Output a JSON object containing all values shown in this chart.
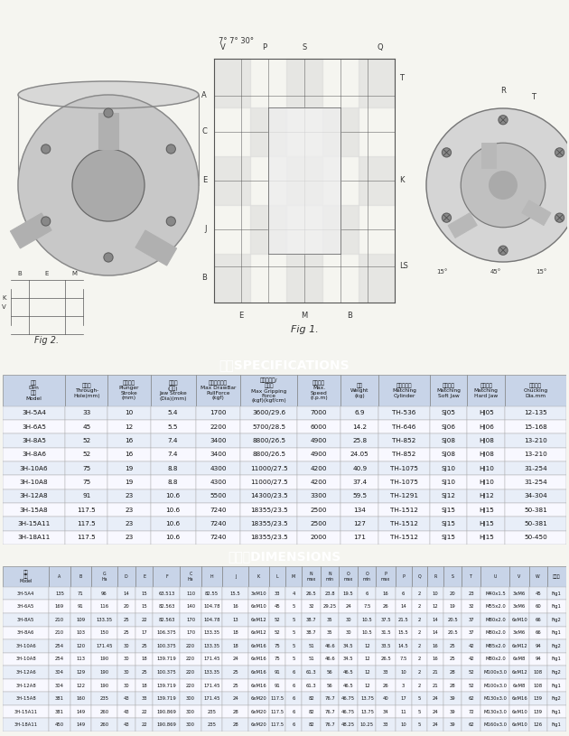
{
  "bg_color": "#f5f5f0",
  "header_blue": "#3060a0",
  "header_text_color": "#ffffff",
  "table_header_bg": "#c8d4e8",
  "row_alt_bg": "#e8eef8",
  "row_bg": "#f8f8ff",
  "border_color": "#888888",
  "title1": "规格SPECIFICATIONS",
  "title2": "尺寸表DIMENSIONS",
  "spec_data": [
    [
      "3H-5A4",
      "33",
      "10",
      "5.4",
      "1700",
      "3600/29.6",
      "7000",
      "6.9",
      "TH-536",
      "SJ05",
      "HJ05",
      "12-135"
    ],
    [
      "3H-6A5",
      "45",
      "12",
      "5.5",
      "2200",
      "5700/28.5",
      "6000",
      "14.2",
      "TH-646",
      "SJ06",
      "HJ06",
      "15-168"
    ],
    [
      "3H-8A5",
      "52",
      "16",
      "7.4",
      "3400",
      "8800/26.5",
      "4900",
      "25.8",
      "TH-852",
      "SJ08",
      "HJ08",
      "13-210"
    ],
    [
      "3H-8A6",
      "52",
      "16",
      "7.4",
      "3400",
      "8800/26.5",
      "4900",
      "24.05",
      "TH-852",
      "SJ08",
      "HJ08",
      "13-210"
    ],
    [
      "3H-10A6",
      "75",
      "19",
      "8.8",
      "4300",
      "11000/27.5",
      "4200",
      "40.9",
      "TH-1075",
      "SJ10",
      "HJ10",
      "31-254"
    ],
    [
      "3H-10A8",
      "75",
      "19",
      "8.8",
      "4300",
      "11000/27.5",
      "4200",
      "37.4",
      "TH-1075",
      "SJ10",
      "HJ10",
      "31-254"
    ],
    [
      "3H-12A8",
      "91",
      "23",
      "10.6",
      "5500",
      "14300/23.5",
      "3300",
      "59.5",
      "TH-1291",
      "SJ12",
      "HJ12",
      "34-304"
    ],
    [
      "3H-15A8",
      "117.5",
      "23",
      "10.6",
      "7240",
      "18355/23.5",
      "2500",
      "134",
      "TH-1512",
      "SJ15",
      "HJ15",
      "50-381"
    ],
    [
      "3H-15A11",
      "117.5",
      "23",
      "10.6",
      "7240",
      "18355/23.5",
      "2500",
      "127",
      "TH-1512",
      "SJ15",
      "HJ15",
      "50-381"
    ],
    [
      "3H-18A11",
      "117.5",
      "23",
      "10.6",
      "7240",
      "18355/23.5",
      "2000",
      "171",
      "TH-1512",
      "SJ15",
      "HJ15",
      "50-450"
    ]
  ],
  "dim_data": [
    [
      "3H-5A4",
      "135",
      "71",
      "96",
      "14",
      "15",
      "63.513",
      "110",
      "82.55",
      "15.5",
      "3xM10",
      "33",
      "4",
      "26.5",
      "23.8",
      "19.5",
      "6",
      "16",
      "6",
      "2",
      "10",
      "20",
      "23",
      "M40x1.5",
      "3xM6",
      "45",
      "Fig1"
    ],
    [
      "3H-6A5",
      "169",
      "91",
      "116",
      "20",
      "15",
      "82.563",
      "140",
      "104.78",
      "16",
      "6xM10",
      "45",
      "5",
      "32",
      "29.25",
      "24",
      "7.5",
      "26",
      "14",
      "2",
      "12",
      "19",
      "32",
      "M55x2.0",
      "3xM6",
      "60",
      "Fig1"
    ],
    [
      "3H-8A5",
      "210",
      "109",
      "133.35",
      "25",
      "22",
      "82.563",
      "170",
      "104.78",
      "13",
      "6xM12",
      "52",
      "5",
      "38.7",
      "35",
      "30",
      "10.5",
      "37.5",
      "21.5",
      "2",
      "14",
      "20.5",
      "37",
      "M80x2.0",
      "6xM10",
      "66",
      "Fig2"
    ],
    [
      "3H-8A6",
      "210",
      "103",
      "150",
      "25",
      "17",
      "106.375",
      "170",
      "133.35",
      "18",
      "6xM12",
      "52",
      "5",
      "38.7",
      "35",
      "30",
      "10.5",
      "31.5",
      "15.5",
      "2",
      "14",
      "20.5",
      "37",
      "M80x2.0",
      "3xM6",
      "66",
      "Fig1"
    ],
    [
      "3H-10A6",
      "254",
      "120",
      "171.45",
      "30",
      "25",
      "100.375",
      "220",
      "133.35",
      "18",
      "6xM16",
      "75",
      "5",
      "51",
      "46.6",
      "34.5",
      "12",
      "33.5",
      "14.5",
      "2",
      "16",
      "25",
      "42",
      "M85x2.0",
      "6xM12",
      "94",
      "Fig2"
    ],
    [
      "3H-10A8",
      "254",
      "113",
      "190",
      "30",
      "18",
      "139.719",
      "220",
      "171.45",
      "24",
      "6xM16",
      "75",
      "5",
      "51",
      "46.6",
      "34.5",
      "12",
      "26.5",
      "7.5",
      "2",
      "16",
      "25",
      "42",
      "M80x2.0",
      "6xM8",
      "94",
      "Fig1"
    ],
    [
      "3H-12A6",
      "304",
      "129",
      "190",
      "30",
      "25",
      "100.375",
      "220",
      "133.35",
      "25",
      "6xM16",
      "91",
      "6",
      "61.3",
      "56",
      "46.5",
      "12",
      "33",
      "10",
      "2",
      "21",
      "28",
      "52",
      "M100x3.0",
      "6xM12",
      "108",
      "Fig2"
    ],
    [
      "3H-12A8",
      "304",
      "122",
      "190",
      "30",
      "18",
      "139.719",
      "220",
      "171.45",
      "25",
      "6xM16",
      "91",
      "6",
      "61.3",
      "56",
      "46.5",
      "12",
      "26",
      "3",
      "2",
      "21",
      "28",
      "52",
      "M100x3.0",
      "6xM8",
      "108",
      "Fig1"
    ],
    [
      "3H-15A8",
      "381",
      "160",
      "235",
      "43",
      "33",
      "139.719",
      "300",
      "171.45",
      "24",
      "6xM20",
      "117.5",
      "6",
      "82",
      "76.7",
      "46.75",
      "13.75",
      "40",
      "17",
      "5",
      "24",
      "39",
      "62",
      "M130x3.0",
      "6xM16",
      "139",
      "Fig2"
    ],
    [
      "3H-15A11",
      "381",
      "149",
      "260",
      "43",
      "22",
      "190.869",
      "300",
      "235",
      "28",
      "6xM20",
      "117.5",
      "6",
      "82",
      "76.7",
      "46.75",
      "13.75",
      "34",
      "11",
      "5",
      "24",
      "39",
      "72",
      "M130x3.0",
      "6xM10",
      "139",
      "Fig1"
    ],
    [
      "3H-18A11",
      "450",
      "149",
      "260",
      "43",
      "22",
      "190.869",
      "300",
      "235",
      "28",
      "6xM20",
      "117.5",
      "6",
      "82",
      "76.7",
      "48.25",
      "10.25",
      "33",
      "10",
      "5",
      "24",
      "39",
      "62",
      "M160x3.0",
      "6xM10",
      "126",
      "Fig1"
    ]
  ]
}
